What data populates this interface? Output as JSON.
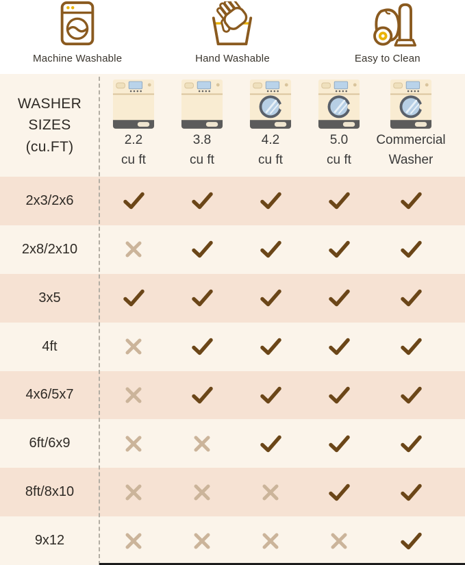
{
  "colors": {
    "icon_brown": "#8a5a1f",
    "icon_yellow": "#eab308",
    "check": "#6b4618",
    "cross": "#cbb49a",
    "row_odd_bg": "#f6e2d3",
    "row_even_bg": "#fcf8f1",
    "header_bg": "#fbf4ea",
    "text_dark": "#2e2a25"
  },
  "features": [
    {
      "label": "Machine Washable",
      "icon": "washing-machine-icon"
    },
    {
      "label": "Hand Washable",
      "icon": "hand-wash-icon"
    },
    {
      "label": "Easy to Clean",
      "icon": "vacuum-icon"
    }
  ],
  "table": {
    "corner_title_lines": [
      "WASHER",
      "SIZES",
      "(cu.FT)"
    ],
    "columns": [
      {
        "size": "2.2",
        "unit": "cu ft",
        "icon": "top-load-washer-icon"
      },
      {
        "size": "3.8",
        "unit": "cu ft",
        "icon": "top-load-washer-icon"
      },
      {
        "size": "4.2",
        "unit": "cu ft",
        "icon": "front-load-washer-icon"
      },
      {
        "size": "5.0",
        "unit": "cu ft",
        "icon": "front-load-washer-icon"
      },
      {
        "size": "Commercial",
        "unit": "Washer",
        "icon": "front-load-washer-icon"
      }
    ],
    "rows": [
      {
        "label": "2x3/2x6",
        "cells": [
          true,
          true,
          true,
          true,
          true
        ]
      },
      {
        "label": "2x8/2x10",
        "cells": [
          false,
          true,
          true,
          true,
          true
        ]
      },
      {
        "label": "3x5",
        "cells": [
          true,
          true,
          true,
          true,
          true
        ]
      },
      {
        "label": "4ft",
        "cells": [
          false,
          true,
          true,
          true,
          true
        ]
      },
      {
        "label": "4x6/5x7",
        "cells": [
          false,
          true,
          true,
          true,
          true
        ]
      },
      {
        "label": "6ft/6x9",
        "cells": [
          false,
          false,
          true,
          true,
          true
        ]
      },
      {
        "label": "8ft/8x10",
        "cells": [
          false,
          false,
          false,
          true,
          true
        ]
      },
      {
        "label": "9x12",
        "cells": [
          false,
          false,
          false,
          false,
          true
        ]
      }
    ]
  },
  "chart_data": {
    "type": "table",
    "row_header": "WASHER SIZES (cu.FT)",
    "columns": [
      "2.2 cu ft",
      "3.8 cu ft",
      "4.2 cu ft",
      "5.0 cu ft",
      "Commercial Washer"
    ],
    "rows": [
      "2x3/2x6",
      "2x8/2x10",
      "3x5",
      "4ft",
      "4x6/5x7",
      "6ft/6x9",
      "8ft/8x10",
      "9x12"
    ],
    "values": [
      [
        true,
        true,
        true,
        true,
        true
      ],
      [
        false,
        true,
        true,
        true,
        true
      ],
      [
        true,
        true,
        true,
        true,
        true
      ],
      [
        false,
        true,
        true,
        true,
        true
      ],
      [
        false,
        true,
        true,
        true,
        true
      ],
      [
        false,
        false,
        true,
        true,
        true
      ],
      [
        false,
        false,
        false,
        true,
        true
      ],
      [
        false,
        false,
        false,
        false,
        true
      ]
    ],
    "legend": {
      "check_means": "compatible",
      "cross_means": "not compatible"
    }
  }
}
